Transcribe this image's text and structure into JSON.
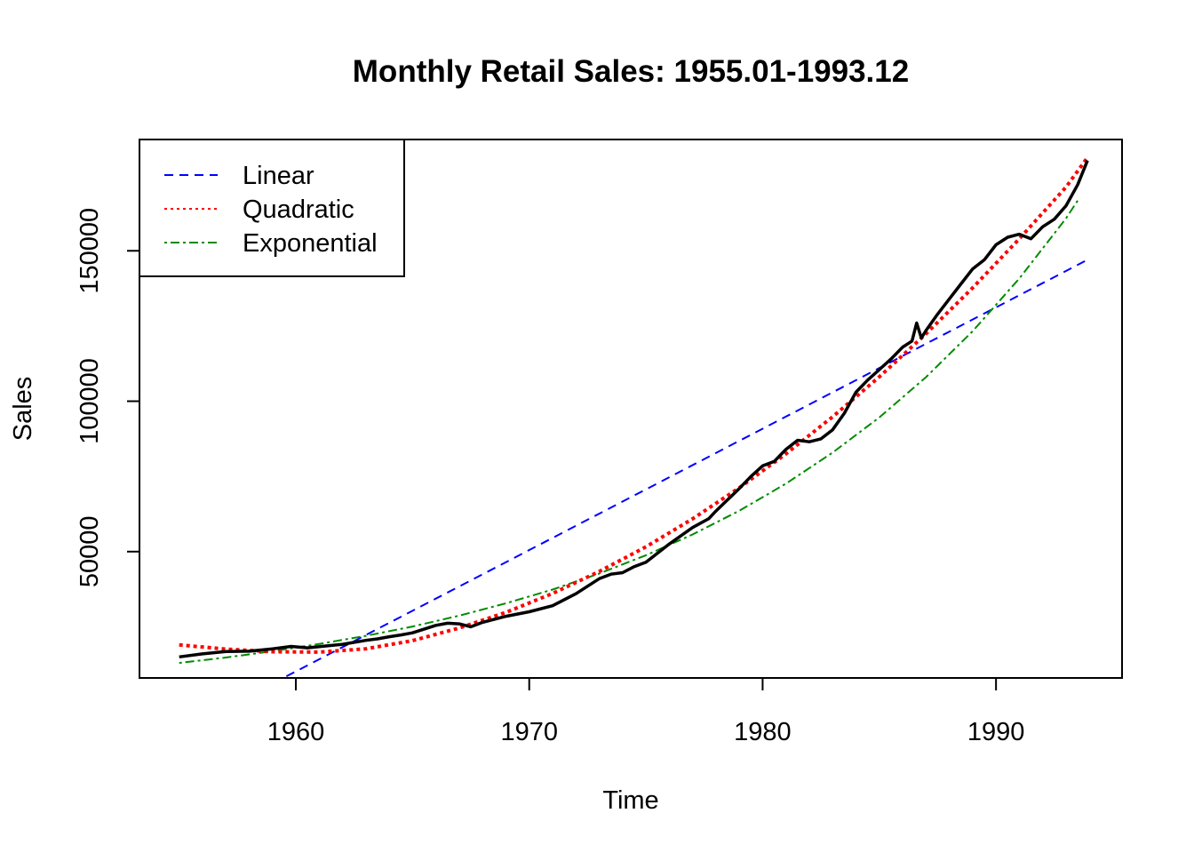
{
  "chart_data": {
    "type": "line",
    "title": "Monthly Retail Sales: 1955.01-1993.12",
    "xlabel": "Time",
    "ylabel": "Sales",
    "xlim": [
      1953.3,
      1995.4
    ],
    "ylim": [
      8000,
      187000
    ],
    "xticks": [
      1960,
      1970,
      1980,
      1990
    ],
    "yticks": [
      50000,
      100000,
      150000
    ],
    "legend_position": "top-left",
    "series": [
      {
        "name": "Linear",
        "color": "#0000ff",
        "dash": "dashed",
        "x": [
          1955.0,
          1993.92
        ],
        "y": [
          -10000,
          147000
        ]
      },
      {
        "name": "Quadratic",
        "color": "#ff0000",
        "dash": "dotted",
        "x": [
          1955,
          1957,
          1959,
          1961,
          1963,
          1965,
          1967,
          1969,
          1971,
          1973,
          1975,
          1977,
          1979,
          1981,
          1983,
          1985,
          1987,
          1989,
          1991,
          1993,
          1993.92
        ],
        "y": [
          19000,
          17600,
          16700,
          16600,
          17700,
          20400,
          24600,
          29800,
          36100,
          43400,
          51600,
          60900,
          71200,
          82500,
          94800,
          108100,
          122400,
          137700,
          154000,
          171200,
          181000
        ]
      },
      {
        "name": "Exponential",
        "color": "#008b00",
        "dash": "dotdash",
        "x": [
          1955,
          1957,
          1959,
          1961,
          1963,
          1965,
          1967,
          1969,
          1971,
          1973,
          1975,
          1977,
          1979,
          1981,
          1983,
          1985,
          1987,
          1989,
          1991,
          1993,
          1993.5
        ],
        "y": [
          13000,
          14800,
          16900,
          19300,
          22000,
          25100,
          28700,
          32800,
          37400,
          42700,
          48800,
          55700,
          63600,
          72600,
          82900,
          94600,
          108000,
          123300,
          140800,
          160800,
          166700
        ]
      },
      {
        "name": "",
        "color": "#000000",
        "dash": "solid",
        "x": [
          1955.0,
          1956.0,
          1957.0,
          1958.0,
          1959.0,
          1959.8,
          1960.5,
          1961.0,
          1962.0,
          1963.0,
          1963.5,
          1964.0,
          1964.5,
          1965.0,
          1966.0,
          1966.5,
          1967.0,
          1967.5,
          1968.0,
          1969.0,
          1970.0,
          1971.0,
          1972.0,
          1973.0,
          1973.5,
          1974.0,
          1974.5,
          1975.0,
          1976.0,
          1977.0,
          1977.7,
          1978.0,
          1979.0,
          1979.5,
          1980.0,
          1980.5,
          1981.0,
          1981.5,
          1982.0,
          1982.5,
          1983.0,
          1983.5,
          1984.0,
          1984.5,
          1985.0,
          1985.5,
          1986.0,
          1986.4,
          1986.6,
          1986.8,
          1987.0,
          1987.5,
          1988.0,
          1988.5,
          1989.0,
          1989.5,
          1990.0,
          1990.5,
          1991.0,
          1991.5,
          1992.0,
          1992.5,
          1993.0,
          1993.5,
          1993.92
        ],
        "y": [
          15000,
          16000,
          16800,
          16900,
          17700,
          18500,
          18000,
          18400,
          19200,
          20500,
          21000,
          21700,
          22300,
          23000,
          25500,
          26200,
          26000,
          25000,
          26500,
          28500,
          30000,
          32000,
          36000,
          41000,
          42500,
          43000,
          45000,
          46500,
          52500,
          58000,
          61000,
          63500,
          71000,
          75000,
          78500,
          80000,
          84000,
          87000,
          86500,
          87500,
          90500,
          96000,
          103000,
          107000,
          110500,
          114000,
          118000,
          120000,
          126000,
          121000,
          123500,
          129000,
          134000,
          139000,
          144000,
          147000,
          152000,
          154500,
          155500,
          154000,
          158000,
          160500,
          165000,
          172000,
          180000
        ]
      }
    ]
  }
}
